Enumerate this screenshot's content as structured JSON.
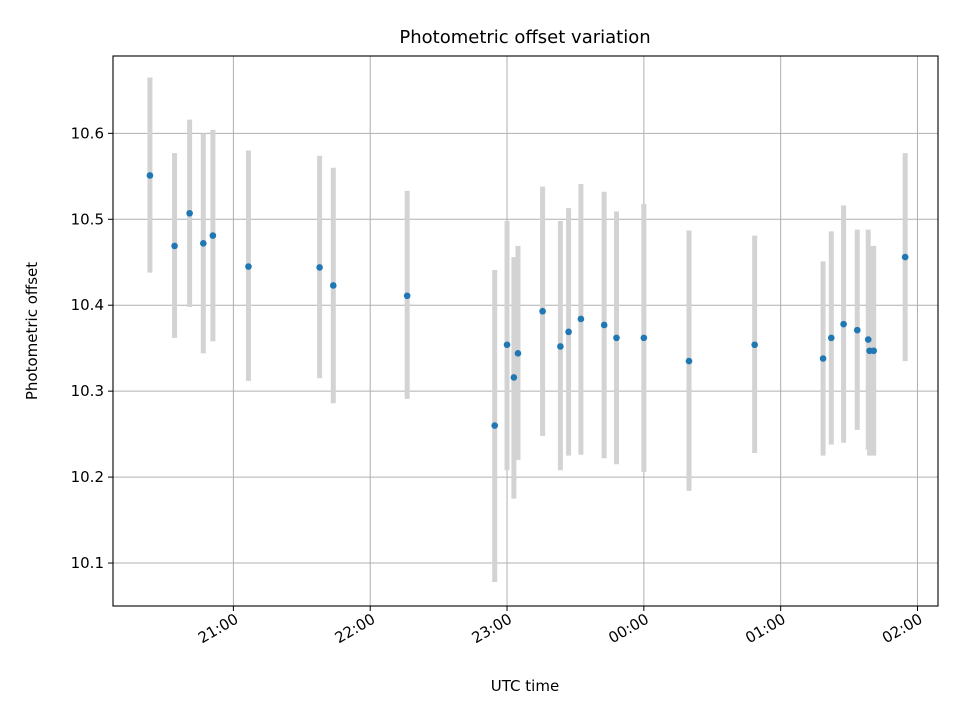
{
  "chart_data": {
    "type": "scatter",
    "title": "Photometric offset variation",
    "xlabel": "UTC time",
    "ylabel": "Photometric offset",
    "x_unit": "hours since 00:00 UTC (negative = previous day)",
    "xlim": [
      -3.88,
      2.15
    ],
    "ylim": [
      10.05,
      10.69
    ],
    "x_ticks": [
      {
        "value": -3,
        "label": "21:00"
      },
      {
        "value": -2,
        "label": "22:00"
      },
      {
        "value": -1,
        "label": "23:00"
      },
      {
        "value": 0,
        "label": "00:00"
      },
      {
        "value": 1,
        "label": "01:00"
      },
      {
        "value": 2,
        "label": "02:00"
      }
    ],
    "y_ticks": [
      {
        "value": 10.1,
        "label": "10.1"
      },
      {
        "value": 10.2,
        "label": "10.2"
      },
      {
        "value": 10.3,
        "label": "10.3"
      },
      {
        "value": 10.4,
        "label": "10.4"
      },
      {
        "value": 10.5,
        "label": "10.5"
      },
      {
        "value": 10.6,
        "label": "10.6"
      }
    ],
    "grid": true,
    "colors": {
      "point": "#1f77b4",
      "errorbar": "#d3d3d3",
      "grid": "#b0b0b0"
    },
    "points": [
      {
        "x": -3.61,
        "y": 10.551,
        "lo": 10.438,
        "hi": 10.665
      },
      {
        "x": -3.43,
        "y": 10.469,
        "lo": 10.362,
        "hi": 10.577
      },
      {
        "x": -3.32,
        "y": 10.507,
        "lo": 10.398,
        "hi": 10.616
      },
      {
        "x": -3.22,
        "y": 10.472,
        "lo": 10.344,
        "hi": 10.6
      },
      {
        "x": -3.15,
        "y": 10.481,
        "lo": 10.358,
        "hi": 10.604
      },
      {
        "x": -2.89,
        "y": 10.445,
        "lo": 10.312,
        "hi": 10.58
      },
      {
        "x": -2.37,
        "y": 10.444,
        "lo": 10.315,
        "hi": 10.574
      },
      {
        "x": -2.27,
        "y": 10.423,
        "lo": 10.286,
        "hi": 10.56
      },
      {
        "x": -1.73,
        "y": 10.411,
        "lo": 10.291,
        "hi": 10.533
      },
      {
        "x": -1.09,
        "y": 10.26,
        "lo": 10.078,
        "hi": 10.441
      },
      {
        "x": -1.0,
        "y": 10.354,
        "lo": 10.208,
        "hi": 10.498
      },
      {
        "x": -0.95,
        "y": 10.316,
        "lo": 10.175,
        "hi": 10.456
      },
      {
        "x": -0.92,
        "y": 10.344,
        "lo": 10.22,
        "hi": 10.469
      },
      {
        "x": -0.74,
        "y": 10.393,
        "lo": 10.248,
        "hi": 10.538
      },
      {
        "x": -0.61,
        "y": 10.352,
        "lo": 10.208,
        "hi": 10.498
      },
      {
        "x": -0.55,
        "y": 10.369,
        "lo": 10.225,
        "hi": 10.513
      },
      {
        "x": -0.46,
        "y": 10.384,
        "lo": 10.226,
        "hi": 10.541
      },
      {
        "x": -0.29,
        "y": 10.377,
        "lo": 10.222,
        "hi": 10.532
      },
      {
        "x": -0.2,
        "y": 10.362,
        "lo": 10.215,
        "hi": 10.509
      },
      {
        "x": 0.0,
        "y": 10.362,
        "lo": 10.206,
        "hi": 10.518
      },
      {
        "x": 0.33,
        "y": 10.335,
        "lo": 10.184,
        "hi": 10.487
      },
      {
        "x": 0.81,
        "y": 10.354,
        "lo": 10.228,
        "hi": 10.481
      },
      {
        "x": 1.31,
        "y": 10.338,
        "lo": 10.225,
        "hi": 10.451
      },
      {
        "x": 1.37,
        "y": 10.362,
        "lo": 10.238,
        "hi": 10.486
      },
      {
        "x": 1.46,
        "y": 10.378,
        "lo": 10.24,
        "hi": 10.516
      },
      {
        "x": 1.56,
        "y": 10.371,
        "lo": 10.255,
        "hi": 10.488
      },
      {
        "x": 1.64,
        "y": 10.36,
        "lo": 10.232,
        "hi": 10.488
      },
      {
        "x": 1.65,
        "y": 10.347,
        "lo": 10.225,
        "hi": 10.468
      },
      {
        "x": 1.68,
        "y": 10.347,
        "lo": 10.225,
        "hi": 10.469
      },
      {
        "x": 1.91,
        "y": 10.456,
        "lo": 10.335,
        "hi": 10.577
      }
    ]
  }
}
